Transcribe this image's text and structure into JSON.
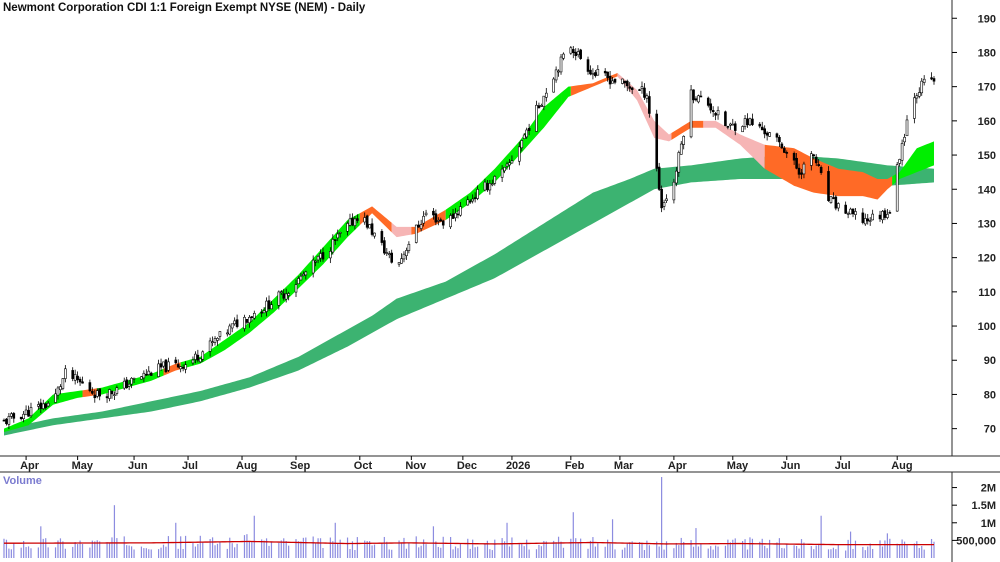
{
  "chart_title": "Newmont Corporation CDI 1:1 Foreign Exempt NYSE (NEM) - Daily",
  "volume_label": "Volume",
  "colors": {
    "long_band": "#3cb371",
    "short_band_up": "#00ee00",
    "short_band_down": "#ff6a26",
    "short_band_fading": "#f6b5b5",
    "volume_bar": "#8c8ce0",
    "volume_avg": "#cc0000",
    "grid_line": "#2a2a2a"
  },
  "chart_data": {
    "type": "candlestick",
    "overlays": [
      "short-term guppy ribbon",
      "long-term guppy ribbon"
    ],
    "price_axis": {
      "ticks": [
        70,
        80,
        90,
        100,
        110,
        120,
        130,
        140,
        150,
        160,
        170,
        180,
        190
      ],
      "labels": [
        "70",
        "80",
        "90",
        "100",
        "110",
        "120",
        "130",
        "140",
        "150",
        "160",
        "170",
        "180",
        "190"
      ],
      "range": [
        62,
        193
      ]
    },
    "volume_axis": {
      "ticks": [
        500000,
        1000000,
        1500000,
        2000000
      ],
      "labels": [
        "500,000",
        "1M",
        "1.5M",
        "2M"
      ],
      "range": [
        0,
        2300000
      ]
    },
    "x_labels": [
      "Apr",
      "May",
      "Jun",
      "Jul",
      "Aug",
      "Sep",
      "Oct",
      "Nov",
      "Dec",
      "2026",
      "Feb",
      "Mar",
      "Apr",
      "May",
      "Jun",
      "Jul",
      "Aug"
    ],
    "x_label_days": [
      9,
      30,
      53,
      75,
      97,
      119,
      145,
      166,
      187,
      207,
      231,
      251,
      273,
      297,
      319,
      341,
      364
    ],
    "last_day": 379,
    "price_anchors": [
      [
        0,
        72
      ],
      [
        10,
        75
      ],
      [
        20,
        78
      ],
      [
        25,
        86
      ],
      [
        32,
        83
      ],
      [
        38,
        80
      ],
      [
        45,
        81
      ],
      [
        50,
        83
      ],
      [
        58,
        86
      ],
      [
        65,
        88
      ],
      [
        75,
        89
      ],
      [
        85,
        95
      ],
      [
        95,
        101
      ],
      [
        105,
        105
      ],
      [
        115,
        110
      ],
      [
        125,
        117
      ],
      [
        135,
        125
      ],
      [
        145,
        133
      ],
      [
        160,
        117
      ],
      [
        166,
        126
      ],
      [
        172,
        133
      ],
      [
        180,
        130
      ],
      [
        188,
        136
      ],
      [
        195,
        140
      ],
      [
        205,
        146
      ],
      [
        215,
        160
      ],
      [
        225,
        175
      ],
      [
        231,
        182
      ],
      [
        240,
        174
      ],
      [
        248,
        172
      ],
      [
        255,
        170
      ],
      [
        262,
        168
      ],
      [
        268,
        135
      ],
      [
        273,
        142
      ],
      [
        280,
        168
      ],
      [
        287,
        165
      ],
      [
        295,
        158
      ],
      [
        303,
        160
      ],
      [
        310,
        157
      ],
      [
        318,
        152
      ],
      [
        324,
        145
      ],
      [
        330,
        150
      ],
      [
        336,
        137
      ],
      [
        344,
        133
      ],
      [
        350,
        131
      ],
      [
        356,
        132
      ],
      [
        361,
        134
      ],
      [
        365,
        150
      ],
      [
        370,
        167
      ],
      [
        376,
        172
      ]
    ],
    "short_ribbon": [
      [
        0,
        69,
        70
      ],
      [
        10,
        71,
        73
      ],
      [
        20,
        77,
        80
      ],
      [
        30,
        79,
        81
      ],
      [
        40,
        80,
        82
      ],
      [
        50,
        82,
        84
      ],
      [
        60,
        84,
        86
      ],
      [
        70,
        87,
        89
      ],
      [
        80,
        89,
        91
      ],
      [
        90,
        93,
        96
      ],
      [
        100,
        98,
        101
      ],
      [
        110,
        104,
        108
      ],
      [
        120,
        111,
        115
      ],
      [
        130,
        118,
        123
      ],
      [
        140,
        126,
        131
      ],
      [
        150,
        133,
        135
      ],
      [
        160,
        126,
        129
      ],
      [
        168,
        127,
        129
      ],
      [
        180,
        131,
        134
      ],
      [
        190,
        136,
        139
      ],
      [
        200,
        142,
        146
      ],
      [
        210,
        150,
        154
      ],
      [
        220,
        158,
        164
      ],
      [
        230,
        167,
        170
      ],
      [
        240,
        170,
        171
      ],
      [
        250,
        173,
        174
      ],
      [
        258,
        166,
        169
      ],
      [
        265,
        155,
        160
      ],
      [
        271,
        154,
        156
      ],
      [
        280,
        158,
        160
      ],
      [
        290,
        158,
        160
      ],
      [
        300,
        153,
        156
      ],
      [
        310,
        146,
        153
      ],
      [
        322,
        141,
        152
      ],
      [
        330,
        139,
        149
      ],
      [
        340,
        138,
        146
      ],
      [
        350,
        138,
        145
      ],
      [
        356,
        137,
        143
      ],
      [
        360,
        140,
        143
      ],
      [
        365,
        143,
        145
      ],
      [
        372,
        145,
        152
      ],
      [
        379,
        147,
        154
      ]
    ],
    "long_ribbon": [
      [
        0,
        68,
        70
      ],
      [
        20,
        71,
        73
      ],
      [
        40,
        73,
        75
      ],
      [
        60,
        75,
        78
      ],
      [
        80,
        78,
        81
      ],
      [
        100,
        82,
        85
      ],
      [
        120,
        87,
        91
      ],
      [
        140,
        94,
        99
      ],
      [
        150,
        98,
        103
      ],
      [
        160,
        102,
        108
      ],
      [
        180,
        108,
        113
      ],
      [
        200,
        114,
        121
      ],
      [
        220,
        122,
        130
      ],
      [
        240,
        130,
        139
      ],
      [
        255,
        136,
        143
      ],
      [
        265,
        140,
        146
      ],
      [
        280,
        142,
        147
      ],
      [
        300,
        143,
        149
      ],
      [
        320,
        143,
        150
      ],
      [
        340,
        141,
        149
      ],
      [
        360,
        141,
        147
      ],
      [
        379,
        142,
        146
      ]
    ],
    "short_segments": [
      [
        0,
        32,
        "up"
      ],
      [
        32,
        38,
        "down"
      ],
      [
        38,
        65,
        "up"
      ],
      [
        65,
        72,
        "down"
      ],
      [
        72,
        145,
        "up"
      ],
      [
        145,
        158,
        "down"
      ],
      [
        158,
        166,
        "fade"
      ],
      [
        166,
        180,
        "down"
      ],
      [
        180,
        227,
        "up"
      ],
      [
        227,
        231,
        "up"
      ],
      [
        231,
        250,
        "down"
      ],
      [
        250,
        272,
        "fade"
      ],
      [
        272,
        285,
        "down"
      ],
      [
        285,
        310,
        "fade"
      ],
      [
        310,
        362,
        "down"
      ],
      [
        362,
        379,
        "up"
      ]
    ],
    "volume": {
      "avg_anchors": [
        [
          0,
          420000
        ],
        [
          60,
          430000
        ],
        [
          100,
          470000
        ],
        [
          140,
          410000
        ],
        [
          165,
          430000
        ],
        [
          200,
          400000
        ],
        [
          240,
          440000
        ],
        [
          270,
          400000
        ],
        [
          300,
          410000
        ],
        [
          340,
          380000
        ],
        [
          379,
          380000
        ]
      ],
      "spikes": [
        [
          5,
          1300000
        ],
        [
          15,
          900000
        ],
        [
          45,
          1500000
        ],
        [
          70,
          1000000
        ],
        [
          102,
          1200000
        ],
        [
          135,
          1000000
        ],
        [
          160,
          1700000
        ],
        [
          175,
          900000
        ],
        [
          205,
          1000000
        ],
        [
          232,
          1300000
        ],
        [
          248,
          1100000
        ],
        [
          265,
          800000
        ],
        [
          268,
          2300000
        ],
        [
          282,
          850000
        ],
        [
          300,
          1000000
        ],
        [
          320,
          1000000
        ],
        [
          333,
          1200000
        ],
        [
          345,
          750000
        ],
        [
          360,
          700000
        ],
        [
          376,
          800000
        ]
      ]
    }
  }
}
